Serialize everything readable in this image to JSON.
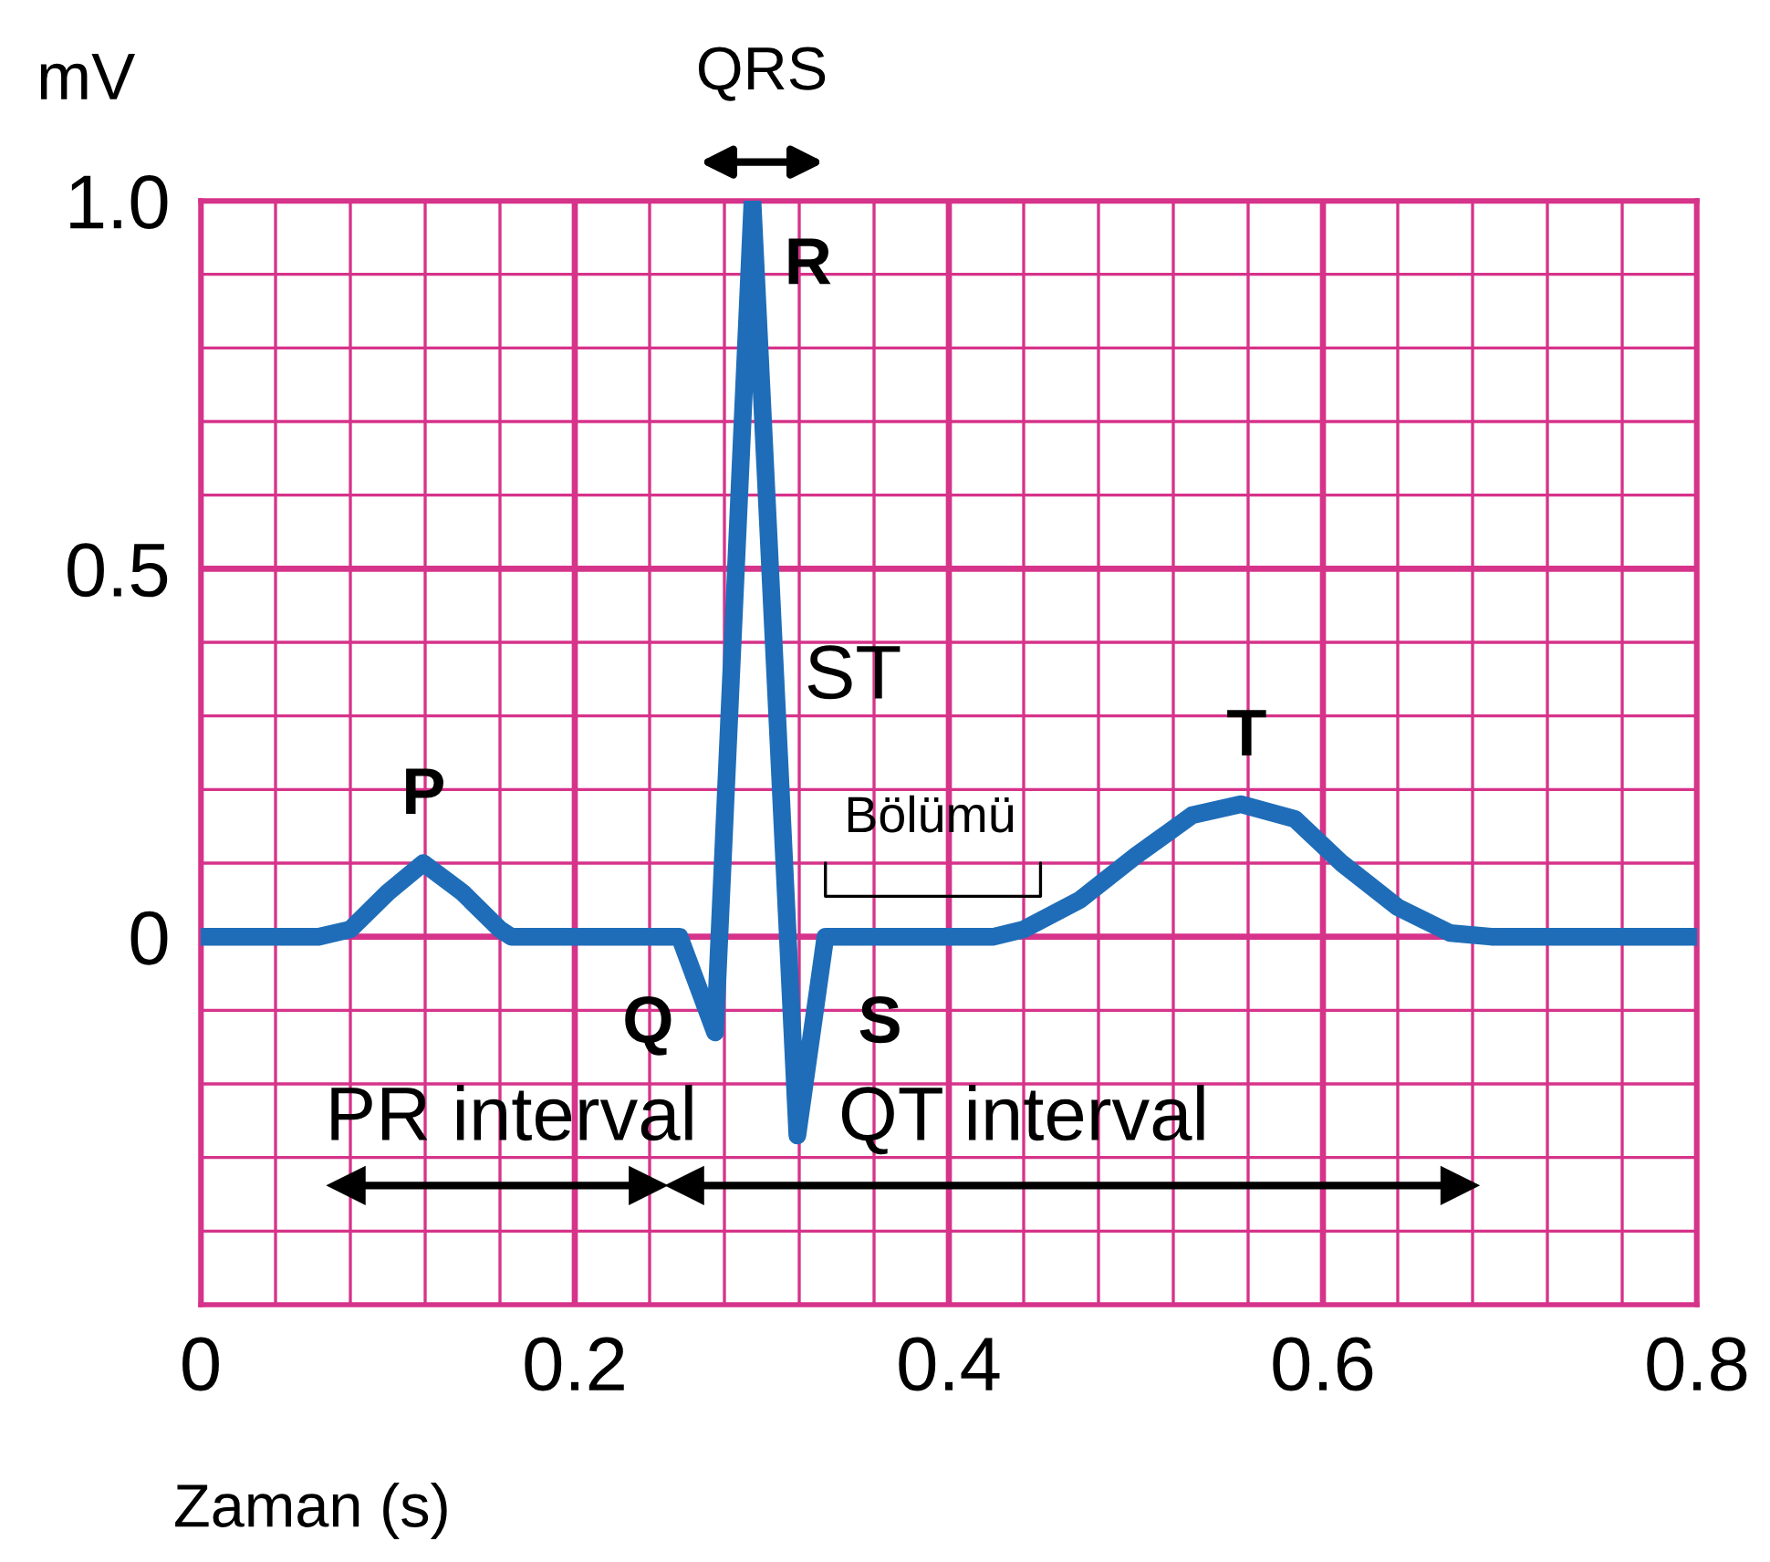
{
  "chart_data": {
    "type": "line",
    "xlabel": "Zaman (s)",
    "ylabel": "mV",
    "xlim": [
      0,
      0.8
    ],
    "ylim": [
      -0.5,
      1.0
    ],
    "xticks": [
      0,
      {
        "value": 0.04,
        "label": null
      },
      {
        "value": 0.08,
        "label": null
      },
      {
        "value": 0.12,
        "label": null
      },
      {
        "value": 0.16,
        "label": null
      },
      0.2,
      {
        "value": 0.24,
        "label": null
      },
      {
        "value": 0.28,
        "label": null
      },
      {
        "value": 0.32,
        "label": null
      },
      {
        "value": 0.36,
        "label": null
      },
      0.4,
      {
        "value": 0.44,
        "label": null
      },
      {
        "value": 0.48,
        "label": null
      },
      {
        "value": 0.52,
        "label": null
      },
      {
        "value": 0.56,
        "label": null
      },
      0.6,
      {
        "value": 0.64,
        "label": null
      },
      {
        "value": 0.68,
        "label": null
      },
      {
        "value": 0.72,
        "label": null
      },
      {
        "value": 0.76,
        "label": null
      },
      0.8
    ],
    "yticks": [
      {
        "value": -0.5,
        "label": null
      },
      {
        "value": -0.4,
        "label": null
      },
      {
        "value": -0.3,
        "label": null
      },
      {
        "value": -0.2,
        "label": null
      },
      {
        "value": -0.1,
        "label": null
      },
      0,
      {
        "value": 0.1,
        "label": null
      },
      {
        "value": 0.2,
        "label": null
      },
      {
        "value": 0.3,
        "label": null
      },
      {
        "value": 0.4,
        "label": null
      },
      0.5,
      {
        "value": 0.6,
        "label": null
      },
      {
        "value": 0.7,
        "label": null
      },
      {
        "value": 0.8,
        "label": null
      },
      {
        "value": 0.9,
        "label": null
      },
      {
        "value": 1.0,
        "label": "1.0"
      }
    ],
    "grid": true,
    "series": [
      {
        "color": "#1f6db8",
        "marker": "none",
        "x": [
          0,
          0.063,
          0.08,
          0.1,
          0.119,
          0.14,
          0.16,
          0.166,
          0.256,
          0.275,
          0.295,
          0.319,
          0.334,
          0.424,
          0.44,
          0.47,
          0.5,
          0.53,
          0.556,
          0.585,
          0.61,
          0.64,
          0.668,
          0.69,
          0.8
        ],
        "values": [
          0,
          0,
          0.01,
          0.06,
          0.1,
          0.06,
          0.01,
          0,
          0,
          -0.13,
          1.0,
          -0.27,
          0,
          0,
          0.01,
          0.05,
          0.11,
          0.165,
          0.18,
          0.16,
          0.1,
          0.04,
          0.005,
          0,
          0
        ]
      },
      {
        "color": "#000000",
        "marker": "triangle",
        "x": [
          0.078,
          0.239
        ],
        "values": [
          -0.338,
          -0.338
        ]
      },
      {
        "color": "#000000",
        "marker": "triangle",
        "x": [
          0.259,
          0.673
        ],
        "values": [
          -0.338,
          -0.338
        ]
      },
      {
        "color": "#000000",
        "marker": "none",
        "x": [
          0.334,
          0.334,
          0.449,
          0.449
        ],
        "values": [
          0.1,
          0.055,
          0.055,
          0.1
        ]
      }
    ],
    "annotations": [
      "QRS",
      "P",
      "R",
      "Q",
      "S",
      "T",
      "ST",
      "Bölümü",
      "PR interval",
      "QT interval"
    ]
  }
}
